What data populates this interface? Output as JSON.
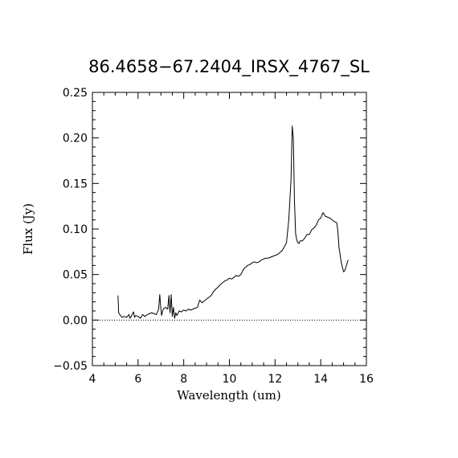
{
  "chart_data": {
    "type": "line",
    "title": "86.4658−67.2404_IRSX_4767_SL",
    "xlabel": "Wavelength (um)",
    "ylabel": "Flux (Jy)",
    "xlim": [
      4,
      16
    ],
    "ylim": [
      -0.05,
      0.25
    ],
    "xticks": [
      "4",
      "6",
      "8",
      "10",
      "12",
      "14",
      "16"
    ],
    "yticks": [
      "−0.05",
      "0.00",
      "0.05",
      "0.10",
      "0.15",
      "0.20",
      "0.25"
    ],
    "grid": false,
    "zero_line": "dotted",
    "series": [
      {
        "x": [
          5.12,
          5.15,
          5.2,
          5.3,
          5.4,
          5.5,
          5.6,
          5.65,
          5.7,
          5.8,
          5.85,
          5.9,
          6.0,
          6.1,
          6.2,
          6.3,
          6.4,
          6.5,
          6.6,
          6.7,
          6.8,
          6.9,
          6.95,
          6.99,
          7.03,
          7.1,
          7.2,
          7.3,
          7.35,
          7.4,
          7.45,
          7.5,
          7.55,
          7.6,
          7.65,
          7.7,
          7.8,
          7.9,
          8.0,
          8.1,
          8.2,
          8.3,
          8.4,
          8.5,
          8.6,
          8.7,
          8.8,
          8.9,
          9.0,
          9.1,
          9.2,
          9.3,
          9.4,
          9.5,
          9.6,
          9.7,
          9.8,
          9.9,
          10.0,
          10.1,
          10.2,
          10.3,
          10.4,
          10.5,
          10.6,
          10.7,
          10.8,
          10.9,
          11.0,
          11.1,
          11.2,
          11.3,
          11.4,
          11.5,
          11.6,
          11.7,
          11.8,
          11.9,
          12.0,
          12.1,
          12.2,
          12.3,
          12.4,
          12.5,
          12.6,
          12.7,
          12.75,
          12.8,
          12.85,
          12.9,
          12.95,
          13.0,
          13.05,
          13.1,
          13.2,
          13.3,
          13.4,
          13.5,
          13.6,
          13.7,
          13.8,
          13.9,
          14.0,
          14.1,
          14.2,
          14.3,
          14.4,
          14.5,
          14.6,
          14.7,
          14.75,
          14.8,
          14.9,
          15.0,
          15.05,
          15.1,
          15.2
        ],
        "y": [
          0.027,
          0.008,
          0.006,
          0.003,
          0.004,
          0.003,
          0.006,
          0.002,
          0.004,
          0.009,
          0.003,
          0.005,
          0.004,
          0.002,
          0.006,
          0.004,
          0.006,
          0.007,
          0.008,
          0.007,
          0.006,
          0.012,
          0.028,
          0.015,
          0.005,
          0.012,
          0.014,
          0.012,
          0.027,
          0.008,
          0.028,
          0.004,
          0.014,
          0.002,
          0.008,
          0.005,
          0.01,
          0.009,
          0.011,
          0.01,
          0.012,
          0.011,
          0.012,
          0.013,
          0.014,
          0.022,
          0.019,
          0.021,
          0.023,
          0.025,
          0.027,
          0.031,
          0.034,
          0.036,
          0.039,
          0.041,
          0.043,
          0.044,
          0.046,
          0.045,
          0.047,
          0.049,
          0.048,
          0.05,
          0.055,
          0.058,
          0.06,
          0.061,
          0.063,
          0.064,
          0.063,
          0.064,
          0.066,
          0.067,
          0.068,
          0.068,
          0.069,
          0.07,
          0.071,
          0.072,
          0.074,
          0.076,
          0.08,
          0.085,
          0.11,
          0.155,
          0.213,
          0.2,
          0.13,
          0.095,
          0.088,
          0.085,
          0.084,
          0.087,
          0.087,
          0.09,
          0.094,
          0.094,
          0.099,
          0.101,
          0.104,
          0.11,
          0.112,
          0.118,
          0.114,
          0.113,
          0.112,
          0.11,
          0.108,
          0.107,
          0.098,
          0.08,
          0.063,
          0.053,
          0.054,
          0.058,
          0.066
        ]
      }
    ]
  }
}
